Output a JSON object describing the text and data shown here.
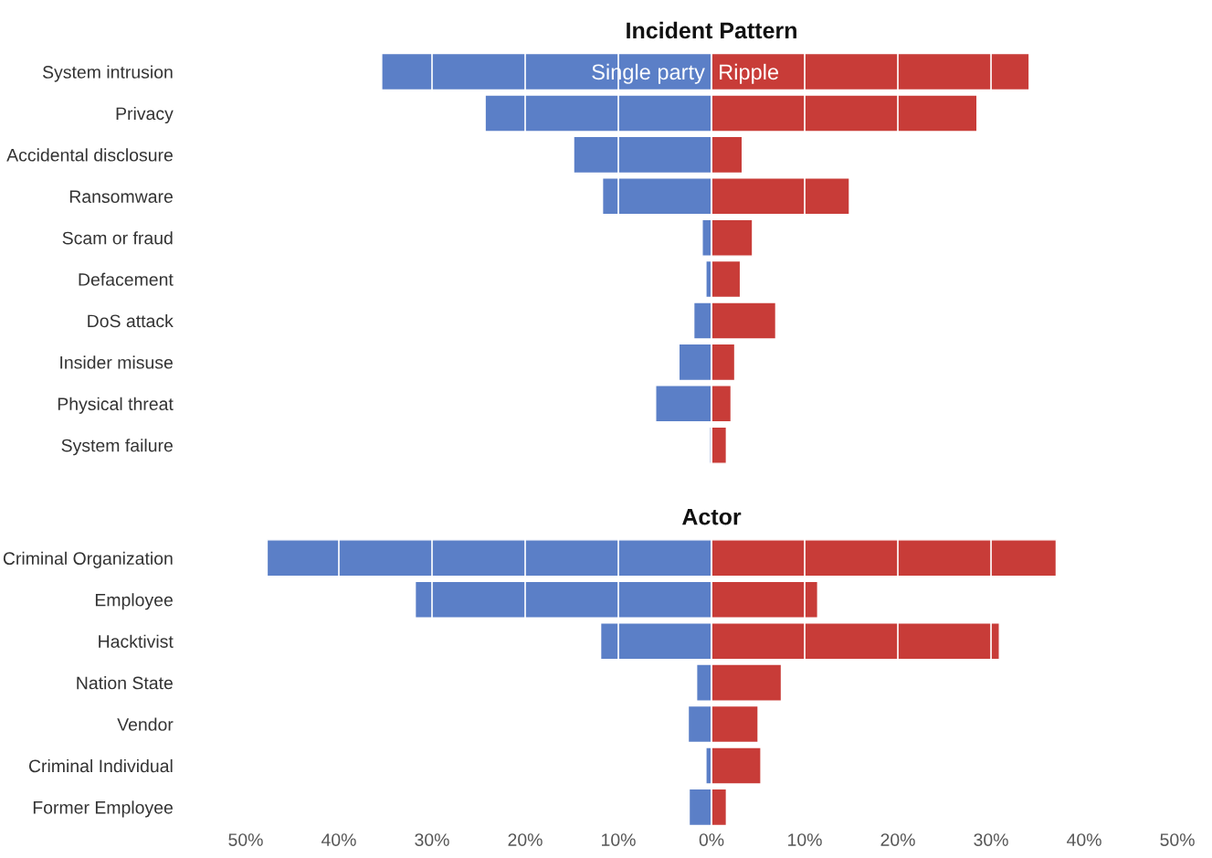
{
  "chart_data": [
    {
      "type": "bar",
      "orientation": "horizontal",
      "title": "Incident Pattern",
      "categories": [
        "System intrusion",
        "Privacy",
        "Accidental disclosure",
        "Ransomware",
        "Scam or fraud",
        "Defacement",
        "DoS attack",
        "Insider misuse",
        "Physical threat",
        "System failure"
      ],
      "series": [
        {
          "name": "Single party",
          "color": "#5b7fc7",
          "values": [
            -35.4,
            -24.3,
            -14.8,
            -11.7,
            -1.0,
            -0.6,
            -1.9,
            -3.5,
            -6.0,
            -0.2
          ]
        },
        {
          "name": "Ripple",
          "color": "#c83c38",
          "values": [
            34.1,
            28.5,
            3.3,
            14.8,
            4.4,
            3.1,
            6.9,
            2.5,
            2.1,
            1.6
          ]
        }
      ],
      "xlim": [
        -50,
        50
      ],
      "xticks": [
        {
          "value": -50,
          "label": null
        },
        {
          "value": -40,
          "label": null
        },
        {
          "value": -30,
          "label": null
        },
        {
          "value": -20,
          "label": null
        },
        {
          "value": -10,
          "label": null
        },
        {
          "value": 0,
          "label": null
        },
        {
          "value": 10,
          "label": null
        },
        {
          "value": 20,
          "label": null
        },
        {
          "value": 30,
          "label": null
        },
        {
          "value": 40,
          "label": null
        },
        {
          "value": 50,
          "label": null
        }
      ],
      "grid": "x",
      "legend": "top",
      "tick_labels": "y",
      "stacked": true
    },
    {
      "type": "bar",
      "orientation": "horizontal",
      "title": "Actor",
      "categories": [
        "Criminal Organization",
        "Employee",
        "Hacktivist",
        "Nation State",
        "Vendor",
        "Criminal Individual",
        "Former Employee"
      ],
      "series": [
        {
          "color": "#5b7fc7",
          "values": [
            -47.7,
            -31.8,
            -11.9,
            -1.6,
            -2.5,
            -0.6,
            -2.4
          ]
        },
        {
          "color": "#c83c38",
          "values": [
            37.0,
            11.4,
            30.9,
            7.5,
            5.0,
            5.3,
            1.6
          ]
        }
      ],
      "xlim": [
        -50,
        50
      ],
      "xticks": [
        {
          "value": -50,
          "label": "50%"
        },
        {
          "value": -40,
          "label": "40%"
        },
        {
          "value": -30,
          "label": "30%"
        },
        {
          "value": -20,
          "label": "20%"
        },
        {
          "value": -10,
          "label": "10%"
        },
        {
          "value": 0,
          "label": "0%"
        },
        {
          "value": 10,
          "label": "10%"
        },
        {
          "value": 20,
          "label": "20%"
        },
        {
          "value": 30,
          "label": "30%"
        },
        {
          "value": 40,
          "label": "40%"
        },
        {
          "value": 50,
          "label": "50%"
        }
      ],
      "grid": "x",
      "stacked": true
    }
  ]
}
